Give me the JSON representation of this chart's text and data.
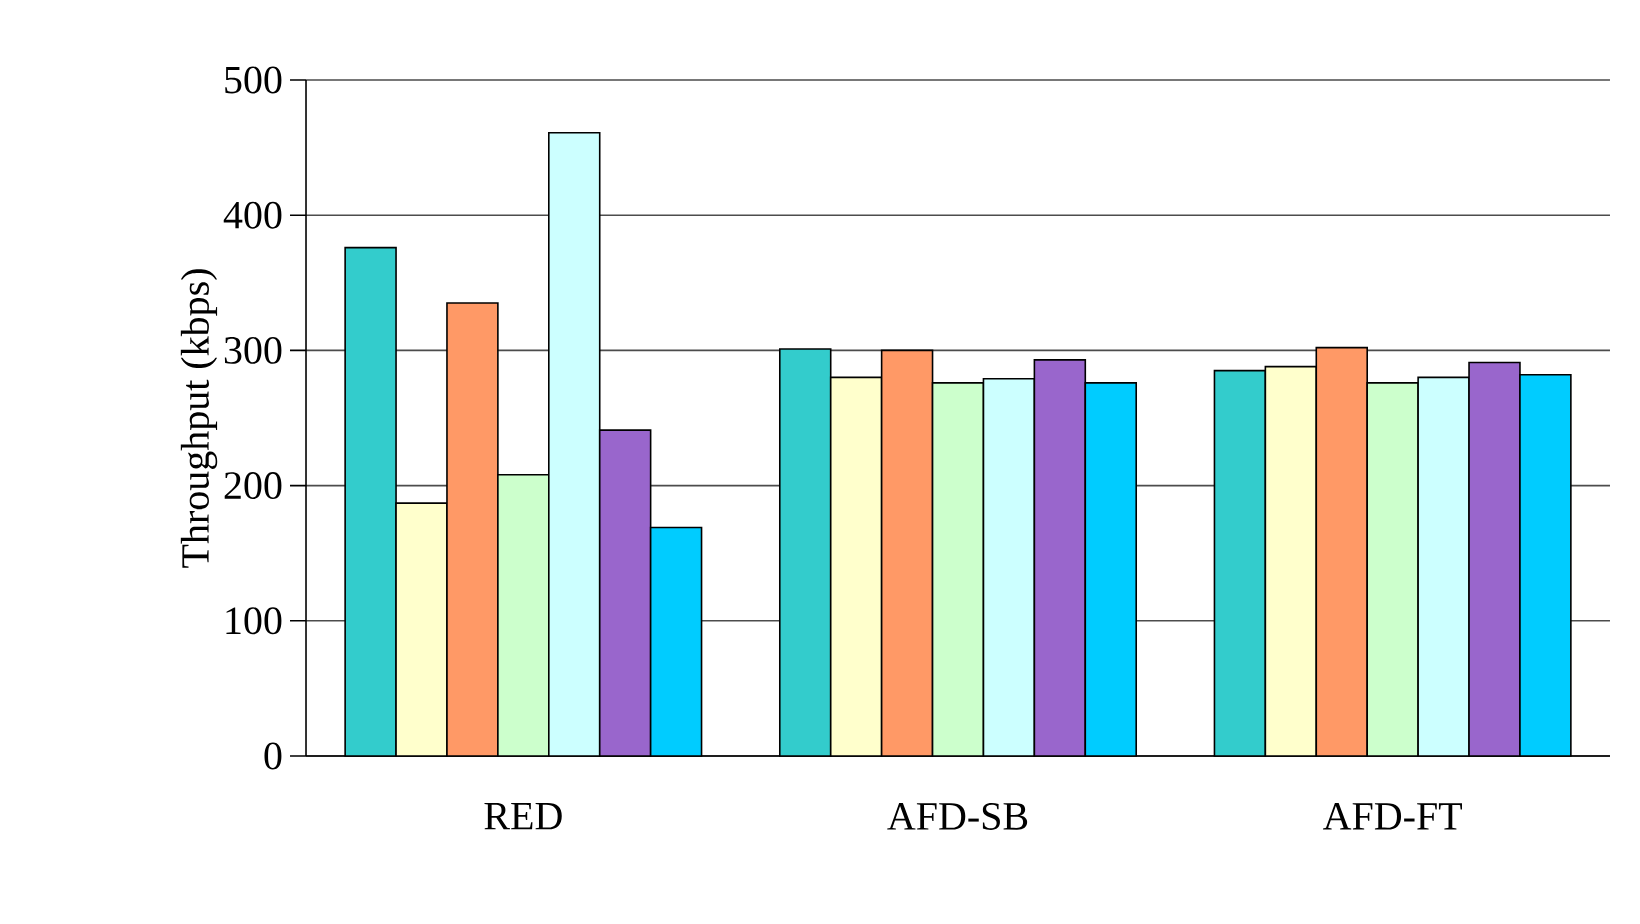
{
  "chart_data": {
    "type": "bar",
    "ylabel": "Throughput (kbps)",
    "categories": [
      "RED",
      "AFD-SB",
      "AFD-FT"
    ],
    "series": [
      {
        "color": "#33cccc",
        "values": [
          376,
          301,
          285
        ]
      },
      {
        "color": "#ffffcc",
        "values": [
          187,
          280,
          288
        ]
      },
      {
        "color": "#ff9966",
        "values": [
          335,
          300,
          302
        ]
      },
      {
        "color": "#ccffcc",
        "values": [
          208,
          276,
          276
        ]
      },
      {
        "color": "#ccffff",
        "values": [
          461,
          279,
          280
        ]
      },
      {
        "color": "#9966cc",
        "values": [
          241,
          293,
          291
        ]
      },
      {
        "color": "#00ccff",
        "values": [
          169,
          276,
          282
        ]
      }
    ],
    "ylim": [
      0,
      500
    ],
    "yticks": [
      0,
      100,
      200,
      300,
      400,
      500
    ],
    "grid": "y"
  }
}
